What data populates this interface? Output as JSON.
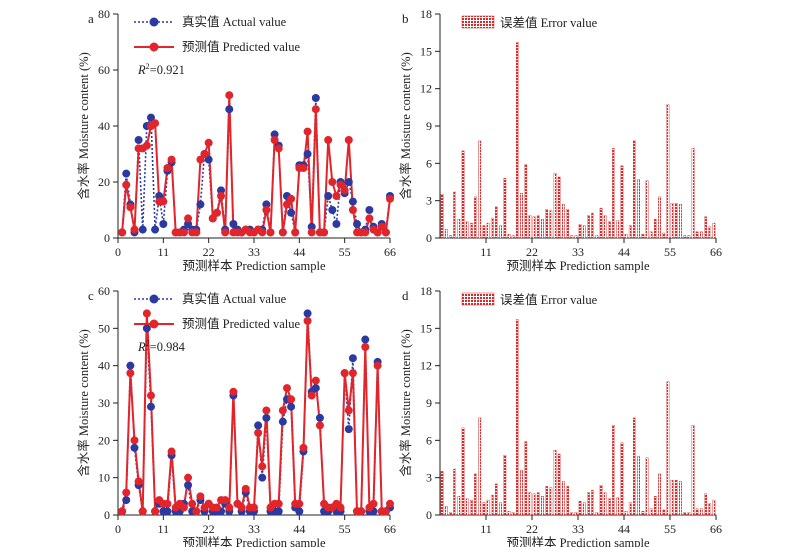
{
  "colors": {
    "actual": "#2b3aa0",
    "actual_line": "#2b3aa0",
    "predicted": "#e2252b",
    "error_fill": "#d62a2a",
    "axis": "#222222"
  },
  "chart_data": [
    {
      "panel_label": "a",
      "type": "line",
      "xlabel": "预测样本 Prediction sample",
      "ylabel": "含水率 Moisture content (%)",
      "xlim": [
        0,
        66
      ],
      "ylim": [
        0,
        80
      ],
      "xticks": [
        0,
        11,
        22,
        33,
        44,
        55,
        66
      ],
      "yticks": [
        0,
        20,
        40,
        60,
        80
      ],
      "grid": false,
      "legend_position": "top-left",
      "annotation_prefix": "R",
      "annotation_sup": "2",
      "annotation_value": "=0.921",
      "x": [
        1,
        2,
        3,
        4,
        5,
        6,
        7,
        8,
        9,
        10,
        11,
        12,
        13,
        14,
        15,
        16,
        17,
        18,
        19,
        20,
        21,
        22,
        23,
        24,
        25,
        26,
        27,
        28,
        29,
        30,
        31,
        32,
        33,
        34,
        35,
        36,
        37,
        38,
        39,
        40,
        41,
        42,
        43,
        44,
        45,
        46,
        47,
        48,
        49,
        50,
        51,
        52,
        53,
        54,
        55,
        56,
        57,
        58,
        59,
        60,
        61,
        62,
        63,
        64,
        65,
        66
      ],
      "series": [
        {
          "name": "真实值 Actual value",
          "style": "dotted",
          "values": [
            2,
            23,
            12,
            2,
            35,
            3,
            40,
            43,
            3,
            15,
            5,
            24,
            27,
            2,
            2,
            3,
            5,
            3,
            3,
            12,
            30,
            28,
            7,
            9,
            17,
            3,
            46,
            5,
            3,
            2,
            3,
            3,
            2,
            3,
            3,
            12,
            2,
            37,
            33,
            2,
            15,
            9,
            2,
            26,
            26,
            30,
            4,
            50,
            2,
            2,
            15,
            10,
            5,
            20,
            16,
            20,
            13,
            5,
            2,
            3,
            10,
            4,
            2,
            5,
            2,
            15
          ]
        },
        {
          "name": "预测值 Predicted value",
          "style": "solid",
          "values": [
            2,
            19,
            11,
            3,
            32,
            32,
            33,
            40,
            41,
            13,
            13,
            25,
            28,
            2,
            2,
            2,
            7,
            2,
            2,
            28,
            30,
            34,
            7,
            9,
            15,
            2,
            51,
            2,
            2,
            2,
            3,
            2,
            2,
            3,
            2,
            10,
            2,
            35,
            32,
            2,
            12,
            14,
            2,
            25,
            25,
            38,
            2,
            46,
            2,
            2,
            35,
            20,
            15,
            19,
            17,
            35,
            10,
            2,
            2,
            2,
            7,
            3,
            2,
            4,
            2,
            14
          ]
        }
      ]
    },
    {
      "panel_label": "b",
      "type": "bar",
      "xlabel": "预测样本 Prediction sample",
      "ylabel": "含水率 Moisture content (%)",
      "xlim": [
        0,
        66
      ],
      "ylim": [
        0,
        18
      ],
      "xticks": [
        11,
        22,
        33,
        44,
        55,
        66
      ],
      "yticks": [
        0,
        3,
        6,
        9,
        12,
        15,
        18
      ],
      "grid": false,
      "legend_position": "top-left",
      "series": [
        {
          "name": "误差值 Error value",
          "values": [
            3.5,
            0.7,
            0.2,
            3.7,
            1.5,
            7.0,
            1.3,
            1.2,
            3.3,
            7.8,
            1.0,
            1.2,
            1.6,
            2.5,
            1.0,
            4.8,
            0.3,
            0.2,
            15.7,
            3.6,
            5.9,
            1.8,
            1.7,
            1.8,
            1.5,
            2.3,
            2.2,
            5.2,
            4.9,
            2.7,
            2.3,
            0.2,
            0.2,
            1.1,
            1.0,
            1.8,
            2.0,
            0.2,
            2.4,
            1.8,
            1.3,
            7.2,
            1.4,
            5.8,
            0.3,
            1.0,
            7.8,
            4.7,
            0.3,
            4.6,
            0.5,
            1.5,
            3.3,
            0.4,
            10.7,
            2.8,
            2.8,
            2.7,
            0.2,
            0.2,
            7.2,
            0.5,
            0.5,
            1.7,
            0.9,
            1.2
          ]
        }
      ]
    },
    {
      "panel_label": "c",
      "type": "line",
      "xlabel": "预测样本 Prediction sample",
      "ylabel": "含水率 Moisture content (%)",
      "xlim": [
        0,
        66
      ],
      "ylim": [
        0,
        60
      ],
      "xticks": [
        0,
        11,
        22,
        33,
        44,
        55,
        66
      ],
      "yticks": [
        0,
        10,
        20,
        30,
        40,
        50,
        60
      ],
      "grid": false,
      "legend_position": "top-left",
      "annotation_prefix": "R",
      "annotation_sup": "2",
      "annotation_value": "=0.984",
      "x": [
        1,
        2,
        3,
        4,
        5,
        6,
        7,
        8,
        9,
        10,
        11,
        12,
        13,
        14,
        15,
        16,
        17,
        18,
        19,
        20,
        21,
        22,
        23,
        24,
        25,
        26,
        27,
        28,
        29,
        30,
        31,
        32,
        33,
        34,
        35,
        36,
        37,
        38,
        39,
        40,
        41,
        42,
        43,
        44,
        45,
        46,
        47,
        48,
        49,
        50,
        51,
        52,
        53,
        54,
        55,
        56,
        57,
        58,
        59,
        60,
        61,
        62,
        63,
        64,
        65,
        66
      ],
      "series": [
        {
          "name": "真实值 Actual value",
          "style": "dotted",
          "values": [
            1,
            4,
            40,
            18,
            8,
            1,
            50,
            29,
            1,
            3,
            1,
            1,
            16,
            1,
            1,
            3,
            8,
            1,
            1,
            4,
            1,
            3,
            1,
            1,
            1,
            3,
            1,
            32,
            3,
            1,
            6,
            1,
            1,
            24,
            10,
            26,
            1,
            1,
            1,
            25,
            31,
            29,
            2,
            1,
            17,
            54,
            33,
            34,
            26,
            1,
            1,
            2,
            1,
            1,
            38,
            23,
            42,
            1,
            1,
            47,
            1,
            1,
            41,
            1,
            1,
            2
          ]
        },
        {
          "name": "预测值 Predicted value",
          "style": "solid",
          "values": [
            1,
            6,
            38,
            20,
            9,
            1,
            54,
            32,
            1,
            4,
            3,
            3,
            17,
            2,
            3,
            2,
            10,
            3,
            1,
            5,
            2,
            3,
            2,
            2,
            4,
            4,
            2,
            33,
            3,
            2,
            7,
            2,
            2,
            22,
            13,
            28,
            2,
            3,
            3,
            28,
            34,
            31,
            3,
            3,
            18,
            52,
            32,
            36,
            24,
            3,
            2,
            2,
            3,
            2,
            38,
            28,
            38,
            1,
            1,
            45,
            2,
            3,
            40,
            1,
            1,
            3
          ]
        }
      ]
    },
    {
      "panel_label": "d",
      "type": "bar",
      "xlabel": "预测样本 Prediction sample",
      "ylabel": "含水率 Moisture content (%)",
      "xlim": [
        0,
        66
      ],
      "ylim": [
        0,
        18
      ],
      "xticks": [
        11,
        22,
        33,
        44,
        55,
        66
      ],
      "yticks": [
        0,
        3,
        6,
        9,
        12,
        15,
        18
      ],
      "grid": false,
      "legend_position": "top-left",
      "series": [
        {
          "name": "误差值 Error value",
          "values": [
            3.5,
            0.7,
            0.2,
            3.7,
            1.5,
            7.0,
            1.3,
            1.2,
            3.3,
            7.8,
            1.0,
            1.2,
            1.6,
            2.5,
            1.0,
            4.8,
            0.3,
            0.2,
            15.7,
            3.6,
            5.9,
            1.8,
            1.7,
            1.8,
            1.5,
            2.3,
            2.2,
            5.2,
            4.9,
            2.7,
            2.3,
            0.2,
            0.2,
            1.1,
            1.0,
            1.8,
            2.0,
            0.2,
            2.4,
            1.8,
            1.3,
            7.2,
            1.4,
            5.8,
            0.3,
            1.0,
            7.8,
            4.7,
            0.3,
            4.6,
            0.5,
            1.5,
            3.3,
            0.4,
            10.7,
            2.8,
            2.8,
            2.7,
            0.2,
            0.2,
            7.2,
            0.5,
            0.5,
            1.7,
            0.9,
            1.2
          ]
        }
      ]
    }
  ]
}
